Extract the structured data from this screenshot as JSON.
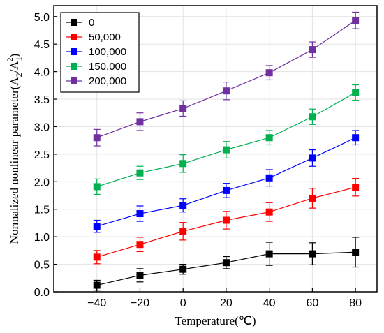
{
  "chart_data": {
    "type": "line",
    "xlabel": "Temperature(℃)",
    "ylabel_main": "Normalized nonlinear parameter(A",
    "ylabel_sub2": "2",
    "ylabel_slash": "/A",
    "ylabel_sub1": "1",
    "ylabel_sup": "2",
    "ylabel_close": ")",
    "x": [
      -40,
      -20,
      0,
      20,
      40,
      60,
      80
    ],
    "xlim": [
      -60,
      90
    ],
    "ylim": [
      0,
      5.2
    ],
    "xticks": [
      "−40",
      "−20",
      "0",
      "20",
      "40",
      "60",
      "80"
    ],
    "yticks": [
      "0.0",
      "0.5",
      "1.0",
      "1.5",
      "2.0",
      "2.5",
      "3.0",
      "3.5",
      "4.0",
      "4.5",
      "5.0"
    ],
    "grid": true,
    "legend_position": "top-left",
    "series": [
      {
        "name": "0",
        "color": "#000000",
        "values": [
          0.12,
          0.3,
          0.41,
          0.53,
          0.69,
          0.69,
          0.72
        ],
        "errors": [
          0.09,
          0.12,
          0.09,
          0.11,
          0.21,
          0.2,
          0.27
        ]
      },
      {
        "name": "50,000",
        "color": "#ff0000",
        "values": [
          0.63,
          0.86,
          1.1,
          1.3,
          1.45,
          1.7,
          1.9
        ],
        "errors": [
          0.12,
          0.13,
          0.16,
          0.16,
          0.17,
          0.18,
          0.16
        ]
      },
      {
        "name": "100,000",
        "color": "#0000ff",
        "values": [
          1.19,
          1.42,
          1.57,
          1.84,
          2.07,
          2.43,
          2.8
        ],
        "errors": [
          0.11,
          0.14,
          0.12,
          0.13,
          0.15,
          0.15,
          0.13
        ]
      },
      {
        "name": "150,000",
        "color": "#00b050",
        "values": [
          1.91,
          2.16,
          2.33,
          2.58,
          2.8,
          3.18,
          3.62
        ],
        "errors": [
          0.14,
          0.12,
          0.16,
          0.15,
          0.13,
          0.14,
          0.14
        ]
      },
      {
        "name": "200,000",
        "color": "#7030a0",
        "values": [
          2.8,
          3.09,
          3.33,
          3.65,
          3.98,
          4.4,
          4.93
        ],
        "errors": [
          0.15,
          0.16,
          0.14,
          0.16,
          0.13,
          0.14,
          0.15
        ]
      }
    ]
  }
}
